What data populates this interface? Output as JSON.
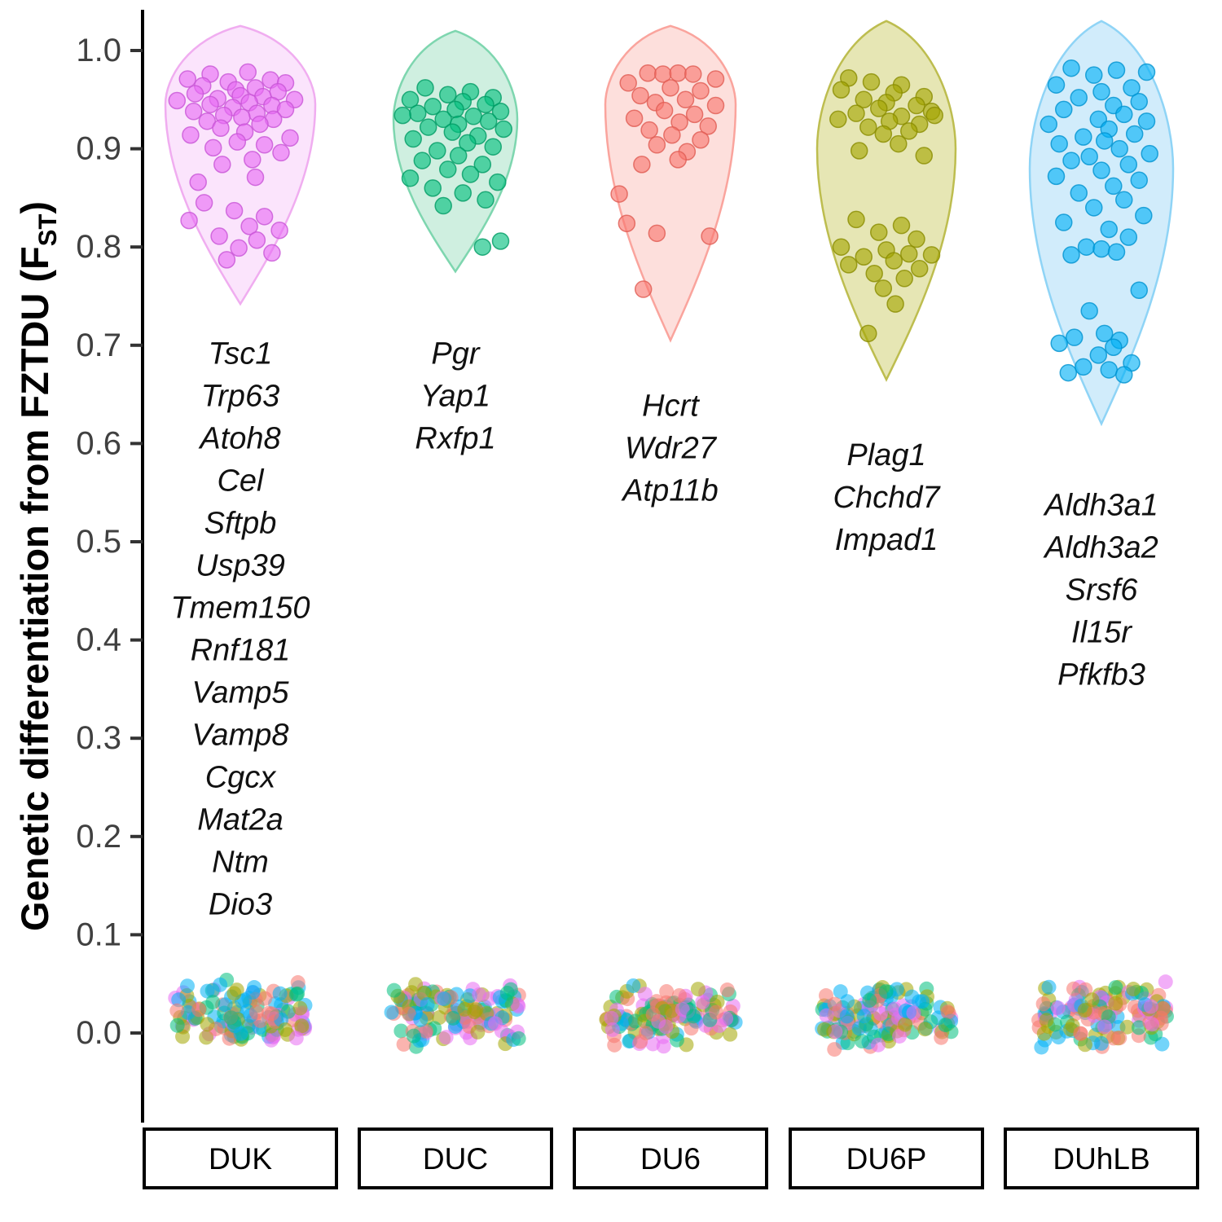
{
  "figure": {
    "y_axis_title_prefix": "Genetic differentiation from FZTDU (F",
    "y_axis_title_sub": "ST",
    "y_axis_title_suffix": ")"
  },
  "chart_data": {
    "type": "scatter",
    "subtype": "violin-with-jittered-points",
    "title": "",
    "xlabel": "",
    "ylabel": "Genetic differentiation from FZTDU (FST)",
    "ylim": [
      -0.09,
      1.04
    ],
    "yticks": [
      0.0,
      0.1,
      0.2,
      0.3,
      0.4,
      0.5,
      0.6,
      0.7,
      0.8,
      0.9,
      1.0
    ],
    "grid": false,
    "legend": "none",
    "categories": [
      "DUK",
      "DUC",
      "DU6",
      "DU6P",
      "DUhLB"
    ],
    "groups": [
      {
        "name": "DUK",
        "point_color": "#E76BF3",
        "point_stroke": "#C855D6",
        "violin_fill": "#F9DBFB",
        "violin_stroke": "#F0ADF0",
        "violin": {
          "top": 1.025,
          "bottom": 0.742,
          "widest": 0.945,
          "half_width": 92
        },
        "genes": [
          "Tsc1",
          "Trp63",
          "Atoh8",
          "Cel",
          "Sftpb",
          "Usp39",
          "Tmem150",
          "Rnf181",
          "Vamp5",
          "Vamp8",
          "Cgcx",
          "Mat2a",
          "Ntm",
          "Dio3"
        ],
        "gene_label_top": 0.681,
        "points": [
          [
            -0.2,
            0.976
          ],
          [
            0.05,
            0.978
          ],
          [
            -0.35,
            0.971
          ],
          [
            0.2,
            0.97
          ],
          [
            -0.08,
            0.968
          ],
          [
            0.3,
            0.967
          ],
          [
            -0.25,
            0.964
          ],
          [
            0.1,
            0.962
          ],
          [
            -0.03,
            0.96
          ],
          [
            0.25,
            0.958
          ],
          [
            -0.3,
            0.956
          ],
          [
            0.0,
            0.954
          ],
          [
            0.15,
            0.953
          ],
          [
            -0.15,
            0.951
          ],
          [
            0.36,
            0.95
          ],
          [
            -0.42,
            0.949
          ],
          [
            0.06,
            0.947
          ],
          [
            -0.2,
            0.945
          ],
          [
            0.21,
            0.944
          ],
          [
            -0.05,
            0.942
          ],
          [
            0.3,
            0.94
          ],
          [
            -0.31,
            0.938
          ],
          [
            0.11,
            0.936
          ],
          [
            -0.11,
            0.934
          ],
          [
            0.01,
            0.932
          ],
          [
            0.22,
            0.93
          ],
          [
            -0.22,
            0.928
          ],
          [
            0.13,
            0.925
          ],
          [
            -0.13,
            0.921
          ],
          [
            0.03,
            0.917
          ],
          [
            -0.33,
            0.914
          ],
          [
            0.33,
            0.911
          ],
          [
            -0.02,
            0.907
          ],
          [
            0.16,
            0.904
          ],
          [
            -0.18,
            0.901
          ],
          [
            0.27,
            0.896
          ],
          [
            0.08,
            0.889
          ],
          [
            -0.12,
            0.884
          ],
          [
            0.1,
            0.871
          ],
          [
            -0.28,
            0.866
          ],
          [
            -0.24,
            0.845
          ],
          [
            -0.04,
            0.837
          ],
          [
            0.16,
            0.831
          ],
          [
            -0.34,
            0.827
          ],
          [
            0.06,
            0.821
          ],
          [
            0.26,
            0.817
          ],
          [
            -0.14,
            0.811
          ],
          [
            0.11,
            0.807
          ],
          [
            -0.01,
            0.799
          ],
          [
            0.21,
            0.794
          ],
          [
            -0.09,
            0.787
          ]
        ]
      },
      {
        "name": "DUC",
        "point_color": "#00BF7D",
        "point_stroke": "#009B64",
        "violin_fill": "#BFE9D5",
        "violin_stroke": "#7ED6AF",
        "violin": {
          "top": 1.02,
          "bottom": 0.775,
          "widest": 0.93,
          "half_width": 76
        },
        "genes": [
          "Pgr",
          "Yap1",
          "Rxfp1"
        ],
        "gene_label_top": 0.681,
        "points": [
          [
            -0.2,
            0.962
          ],
          [
            0.1,
            0.958
          ],
          [
            -0.05,
            0.955
          ],
          [
            0.25,
            0.952
          ],
          [
            -0.3,
            0.95
          ],
          [
            0.05,
            0.948
          ],
          [
            0.2,
            0.945
          ],
          [
            -0.15,
            0.943
          ],
          [
            0.0,
            0.94
          ],
          [
            0.3,
            0.938
          ],
          [
            -0.25,
            0.936
          ],
          [
            0.12,
            0.933
          ],
          [
            -0.35,
            0.934
          ],
          [
            -0.08,
            0.93
          ],
          [
            0.22,
            0.928
          ],
          [
            0.02,
            0.925
          ],
          [
            -0.18,
            0.922
          ],
          [
            0.32,
            0.92
          ],
          [
            -0.02,
            0.917
          ],
          [
            0.15,
            0.913
          ],
          [
            -0.28,
            0.91
          ],
          [
            0.08,
            0.906
          ],
          [
            0.25,
            0.902
          ],
          [
            -0.12,
            0.898
          ],
          [
            0.02,
            0.893
          ],
          [
            -0.22,
            0.888
          ],
          [
            0.18,
            0.884
          ],
          [
            -0.05,
            0.879
          ],
          [
            0.1,
            0.874
          ],
          [
            -0.3,
            0.87
          ],
          [
            0.28,
            0.866
          ],
          [
            -0.15,
            0.86
          ],
          [
            0.05,
            0.855
          ],
          [
            0.2,
            0.848
          ],
          [
            -0.08,
            0.842
          ],
          [
            0.3,
            0.806
          ],
          [
            0.18,
            0.8
          ]
        ]
      },
      {
        "name": "DU6",
        "point_color": "#F8766D",
        "point_stroke": "#E05B52",
        "violin_fill": "#FCD4D0",
        "violin_stroke": "#FAA49D",
        "violin": {
          "top": 1.025,
          "bottom": 0.705,
          "widest": 0.945,
          "half_width": 80
        },
        "genes": [
          "Hcrt",
          "Wdr27",
          "Atp11b"
        ],
        "gene_label_top": 0.628,
        "points": [
          [
            -0.15,
            0.977
          ],
          [
            -0.05,
            0.976
          ],
          [
            0.05,
            0.977
          ],
          [
            0.15,
            0.976
          ],
          [
            0.3,
            0.971
          ],
          [
            -0.28,
            0.967
          ],
          [
            0.0,
            0.962
          ],
          [
            0.2,
            0.959
          ],
          [
            -0.2,
            0.954
          ],
          [
            0.1,
            0.95
          ],
          [
            -0.1,
            0.947
          ],
          [
            0.3,
            0.944
          ],
          [
            -0.04,
            0.939
          ],
          [
            0.16,
            0.935
          ],
          [
            -0.24,
            0.931
          ],
          [
            0.06,
            0.927
          ],
          [
            0.25,
            0.923
          ],
          [
            -0.14,
            0.919
          ],
          [
            0.01,
            0.914
          ],
          [
            0.2,
            0.909
          ],
          [
            -0.09,
            0.904
          ],
          [
            0.11,
            0.897
          ],
          [
            0.05,
            0.889
          ],
          [
            -0.19,
            0.884
          ],
          [
            -0.34,
            0.854
          ],
          [
            -0.29,
            0.824
          ],
          [
            -0.09,
            0.814
          ],
          [
            0.26,
            0.811
          ],
          [
            -0.18,
            0.757
          ]
        ]
      },
      {
        "name": "DU6P",
        "point_color": "#A3A500",
        "point_stroke": "#8A8C00",
        "violin_fill": "#DEDE9B",
        "violin_stroke": "#BDBD4F",
        "violin": {
          "top": 1.03,
          "bottom": 0.665,
          "widest": 0.9,
          "half_width": 85
        },
        "genes": [
          "Plag1",
          "Chchd7",
          "Impad1"
        ],
        "gene_label_top": 0.578,
        "points": [
          [
            -0.25,
            0.972
          ],
          [
            -0.1,
            0.968
          ],
          [
            0.1,
            0.965
          ],
          [
            -0.3,
            0.96
          ],
          [
            0.05,
            0.957
          ],
          [
            0.25,
            0.953
          ],
          [
            -0.15,
            0.95
          ],
          [
            0.0,
            0.947
          ],
          [
            0.2,
            0.944
          ],
          [
            -0.05,
            0.941
          ],
          [
            0.3,
            0.938
          ],
          [
            -0.2,
            0.936
          ],
          [
            0.1,
            0.933
          ],
          [
            -0.32,
            0.93
          ],
          [
            0.02,
            0.928
          ],
          [
            0.22,
            0.925
          ],
          [
            -0.12,
            0.922
          ],
          [
            0.32,
            0.934
          ],
          [
            0.15,
            0.918
          ],
          [
            -0.02,
            0.915
          ],
          [
            0.08,
            0.905
          ],
          [
            -0.18,
            0.898
          ],
          [
            0.25,
            0.893
          ],
          [
            -0.2,
            0.828
          ],
          [
            0.1,
            0.822
          ],
          [
            -0.05,
            0.815
          ],
          [
            0.2,
            0.808
          ],
          [
            -0.3,
            0.8
          ],
          [
            0.0,
            0.797
          ],
          [
            0.15,
            0.793
          ],
          [
            -0.15,
            0.79
          ],
          [
            0.3,
            0.792
          ],
          [
            0.05,
            0.786
          ],
          [
            -0.25,
            0.782
          ],
          [
            0.22,
            0.778
          ],
          [
            -0.08,
            0.773
          ],
          [
            0.12,
            0.768
          ],
          [
            -0.02,
            0.758
          ],
          [
            0.06,
            0.742
          ],
          [
            -0.12,
            0.712
          ]
        ]
      },
      {
        "name": "DUhLB",
        "point_color": "#00B0F6",
        "point_stroke": "#0092D0",
        "violin_fill": "#C2E6FA",
        "violin_stroke": "#8FD4F6",
        "violin": {
          "top": 1.03,
          "bottom": 0.62,
          "widest": 0.88,
          "half_width": 88
        },
        "genes": [
          "Aldh3a1",
          "Aldh3a2",
          "Srsf6",
          "Il15r",
          "Pfkfb3"
        ],
        "gene_label_top": 0.527,
        "points": [
          [
            -0.2,
            0.982
          ],
          [
            0.1,
            0.98
          ],
          [
            0.3,
            0.978
          ],
          [
            -0.05,
            0.975
          ],
          [
            -0.3,
            0.965
          ],
          [
            0.2,
            0.962
          ],
          [
            0.0,
            0.958
          ],
          [
            -0.15,
            0.952
          ],
          [
            0.25,
            0.948
          ],
          [
            0.08,
            0.944
          ],
          [
            -0.25,
            0.94
          ],
          [
            0.15,
            0.935
          ],
          [
            -0.02,
            0.93
          ],
          [
            0.3,
            0.928
          ],
          [
            -0.35,
            0.925
          ],
          [
            0.05,
            0.92
          ],
          [
            0.22,
            0.915
          ],
          [
            -0.12,
            0.912
          ],
          [
            0.02,
            0.908
          ],
          [
            -0.28,
            0.905
          ],
          [
            0.12,
            0.9
          ],
          [
            0.32,
            0.895
          ],
          [
            -0.08,
            0.892
          ],
          [
            -0.2,
            0.888
          ],
          [
            0.18,
            0.884
          ],
          [
            0.0,
            0.878
          ],
          [
            -0.3,
            0.872
          ],
          [
            0.25,
            0.868
          ],
          [
            0.08,
            0.862
          ],
          [
            -0.15,
            0.855
          ],
          [
            0.15,
            0.848
          ],
          [
            -0.05,
            0.84
          ],
          [
            0.28,
            0.832
          ],
          [
            -0.25,
            0.825
          ],
          [
            0.05,
            0.818
          ],
          [
            0.18,
            0.81
          ],
          [
            -0.1,
            0.8
          ],
          [
            0.0,
            0.798
          ],
          [
            0.1,
            0.795
          ],
          [
            -0.2,
            0.792
          ],
          [
            0.25,
            0.756
          ],
          [
            -0.08,
            0.735
          ],
          [
            0.02,
            0.712
          ],
          [
            -0.18,
            0.708
          ],
          [
            0.12,
            0.705
          ],
          [
            -0.28,
            0.702
          ],
          [
            0.08,
            0.698
          ],
          [
            -0.02,
            0.69
          ],
          [
            0.2,
            0.682
          ],
          [
            -0.12,
            0.678
          ],
          [
            0.05,
            0.675
          ],
          [
            -0.22,
            0.672
          ],
          [
            0.15,
            0.67
          ]
        ]
      }
    ],
    "baseline_cluster": {
      "description": "Dense cluster of low-differentiation SNPs near FST = 0 under every line, points colored in a mix of all five line colors",
      "count_per_group": 130,
      "y_min": -0.018,
      "y_max": 0.054,
      "half_width": 80
    }
  }
}
